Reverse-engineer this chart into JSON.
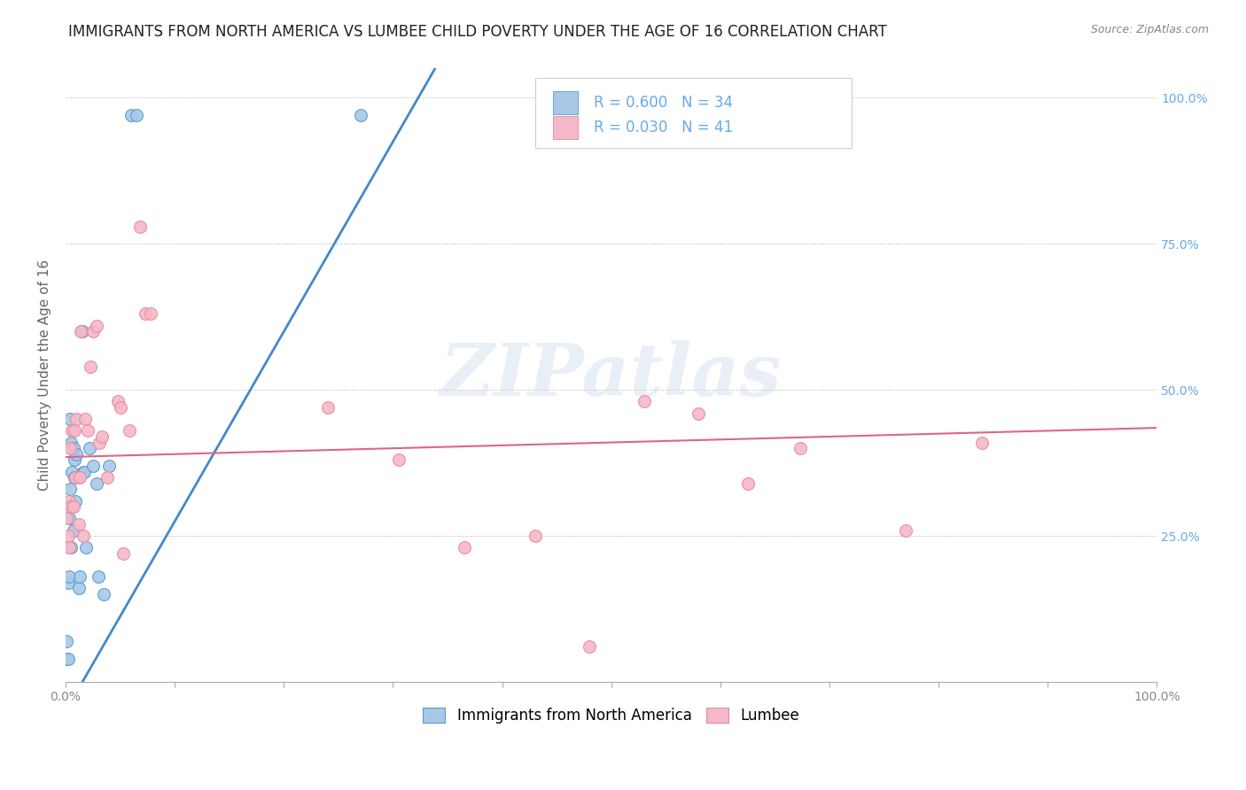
{
  "title": "IMMIGRANTS FROM NORTH AMERICA VS LUMBEE CHILD POVERTY UNDER THE AGE OF 16 CORRELATION CHART",
  "source": "Source: ZipAtlas.com",
  "ylabel": "Child Poverty Under the Age of 16",
  "legend_labels": [
    "Immigrants from North America",
    "Lumbee"
  ],
  "blue_R": "R = 0.600",
  "blue_N": "N = 34",
  "pink_R": "R = 0.030",
  "pink_N": "N = 41",
  "blue_color": "#a8c8e8",
  "pink_color": "#f4b8c8",
  "blue_edge_color": "#5599cc",
  "pink_edge_color": "#e88899",
  "blue_line_color": "#4488cc",
  "pink_line_color": "#dd6688",
  "background_color": "#ffffff",
  "grid_color": "#cccccc",
  "right_tick_color": "#66aaee",
  "blue_scatter_x": [
    0.001,
    0.001,
    0.002,
    0.002,
    0.003,
    0.003,
    0.004,
    0.004,
    0.005,
    0.005,
    0.006,
    0.006,
    0.007,
    0.007,
    0.008,
    0.008,
    0.009,
    0.01,
    0.011,
    0.012,
    0.013,
    0.015,
    0.016,
    0.017,
    0.019,
    0.022,
    0.025,
    0.028,
    0.03,
    0.035,
    0.04,
    0.06,
    0.065,
    0.27
  ],
  "blue_scatter_y": [
    0.04,
    0.07,
    0.04,
    0.17,
    0.18,
    0.28,
    0.33,
    0.45,
    0.23,
    0.41,
    0.36,
    0.3,
    0.26,
    0.4,
    0.38,
    0.35,
    0.31,
    0.39,
    0.35,
    0.16,
    0.18,
    0.6,
    0.36,
    0.36,
    0.23,
    0.4,
    0.37,
    0.34,
    0.18,
    0.15,
    0.37,
    0.97,
    0.97,
    0.97
  ],
  "pink_scatter_x": [
    0.001,
    0.002,
    0.003,
    0.003,
    0.004,
    0.005,
    0.006,
    0.007,
    0.008,
    0.009,
    0.01,
    0.012,
    0.013,
    0.014,
    0.016,
    0.018,
    0.02,
    0.023,
    0.025,
    0.028,
    0.031,
    0.033,
    0.038,
    0.048,
    0.05,
    0.053,
    0.058,
    0.068,
    0.073,
    0.078,
    0.24,
    0.305,
    0.365,
    0.43,
    0.48,
    0.53,
    0.58,
    0.625,
    0.673,
    0.77,
    0.84
  ],
  "pink_scatter_y": [
    0.28,
    0.25,
    0.23,
    0.31,
    0.4,
    0.3,
    0.43,
    0.3,
    0.43,
    0.35,
    0.45,
    0.27,
    0.35,
    0.6,
    0.25,
    0.45,
    0.43,
    0.54,
    0.6,
    0.61,
    0.41,
    0.42,
    0.35,
    0.48,
    0.47,
    0.22,
    0.43,
    0.78,
    0.63,
    0.63,
    0.47,
    0.38,
    0.23,
    0.25,
    0.06,
    0.48,
    0.46,
    0.34,
    0.4,
    0.26,
    0.41
  ],
  "blue_line_x": [
    0.0,
    1.0
  ],
  "blue_line_y": [
    -0.05,
    3.2
  ],
  "pink_line_x": [
    0.0,
    1.0
  ],
  "pink_line_y": [
    0.385,
    0.435
  ],
  "watermark": "ZIPatlas",
  "xlim": [
    0.0,
    1.0
  ],
  "ylim": [
    0.0,
    1.05
  ],
  "xtick_positions": [
    0.0,
    0.1,
    0.2,
    0.3,
    0.4,
    0.5,
    0.6,
    0.7,
    0.8,
    0.9,
    1.0
  ],
  "xtick_labels": [
    "0.0%",
    "",
    "",
    "",
    "",
    "",
    "",
    "",
    "",
    "",
    "100.0%"
  ],
  "ytick_positions": [
    0.0,
    0.25,
    0.5,
    0.75,
    1.0
  ],
  "right_ytick_labels": [
    "",
    "25.0%",
    "50.0%",
    "75.0%",
    "100.0%"
  ],
  "title_fontsize": 12,
  "axis_fontsize": 11,
  "tick_fontsize": 10,
  "legend_fontsize": 12,
  "marker_size": 100
}
